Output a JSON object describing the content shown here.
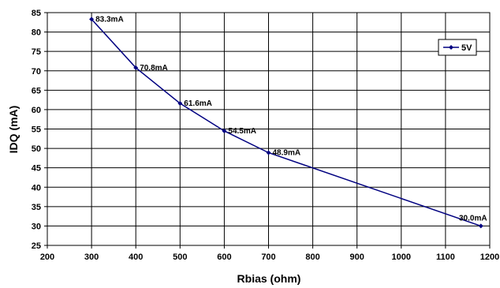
{
  "chart_data": {
    "type": "line",
    "xlabel": "Rbias (ohm)",
    "ylabel": "IDQ (mA)",
    "xlim": [
      200,
      1200
    ],
    "ylim": [
      25,
      85
    ],
    "xticks": [
      "200",
      "300",
      "400",
      "500",
      "600",
      "700",
      "800",
      "900",
      "1000",
      "1100",
      "1200"
    ],
    "yticks": [
      "25",
      "30",
      "35",
      "40",
      "45",
      "50",
      "55",
      "60",
      "65",
      "70",
      "75",
      "80",
      "85"
    ],
    "grid": true,
    "legend_position": "right",
    "series": [
      {
        "name": "5V",
        "color": "#000080",
        "x": [
          300,
          400,
          500,
          600,
          700,
          1180
        ],
        "y": [
          83.3,
          70.8,
          61.6,
          54.5,
          48.9,
          30.0
        ],
        "labels": [
          "83.3mA",
          "70.8mA",
          "61.6mA",
          "54.5mA",
          "48.9mA",
          "30.0mA"
        ]
      }
    ]
  }
}
